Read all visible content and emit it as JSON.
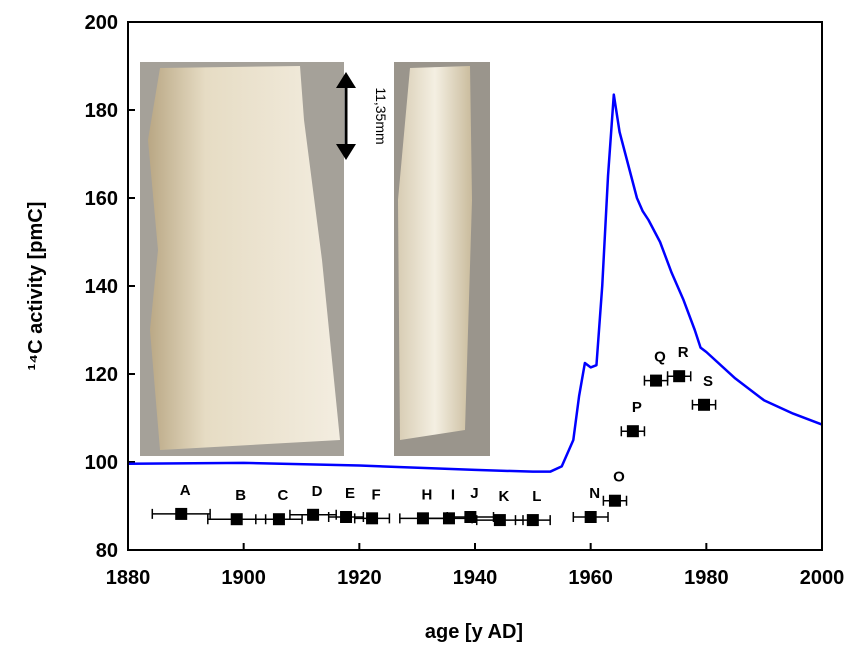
{
  "chart_data": {
    "type": "line",
    "xlabel": "age [y AD]",
    "ylabel": "¹⁴C activity [pmC]",
    "annotation": "11,35mm",
    "xlim": [
      1880,
      2000
    ],
    "ylim": [
      80,
      200
    ],
    "xticks": [
      1880,
      1900,
      1920,
      1940,
      1960,
      1980,
      2000
    ],
    "yticks": [
      80,
      100,
      120,
      140,
      160,
      180,
      200
    ],
    "series": [
      {
        "type": "line",
        "color": "#0000ff",
        "x": [
          1880,
          1900,
          1920,
          1940,
          1950,
          1953,
          1955,
          1957,
          1958,
          1959,
          1960,
          1961,
          1962,
          1963,
          1964,
          1965,
          1966,
          1967,
          1968,
          1969,
          1970,
          1972,
          1974,
          1976,
          1978,
          1979,
          1980,
          1985,
          1990,
          1995,
          2000
        ],
        "values": [
          99.6,
          99.8,
          99.2,
          98.2,
          97.8,
          97.8,
          99,
          105,
          115,
          122.5,
          121.5,
          122,
          140,
          165,
          183.5,
          175,
          170,
          165,
          160,
          157,
          155,
          150,
          143,
          137,
          130,
          126,
          125,
          119,
          114,
          111,
          108.5
        ]
      },
      {
        "type": "scatter",
        "color": "#000000",
        "labels": [
          "A",
          "B",
          "C",
          "D",
          "E",
          "F",
          "H",
          "I",
          "J",
          "K",
          "L",
          "N",
          "O",
          "P",
          "Q",
          "R",
          "S"
        ],
        "x": [
          1889.2,
          1898.8,
          1906.1,
          1912,
          1917.7,
          1922.2,
          1931,
          1935.5,
          1939.2,
          1944.3,
          1950,
          1960,
          1964.2,
          1967.3,
          1971.3,
          1975.3,
          1979.6
        ],
        "values": [
          88.2,
          87,
          87,
          88,
          87.5,
          87.2,
          87.2,
          87.2,
          87.5,
          86.8,
          86.8,
          87.5,
          91.2,
          107,
          118.5,
          119.5,
          113
        ],
        "xerr": [
          5,
          5,
          4,
          4,
          3,
          3,
          4,
          4,
          4,
          4,
          3,
          3,
          2,
          2,
          2,
          2,
          2
        ]
      }
    ]
  }
}
